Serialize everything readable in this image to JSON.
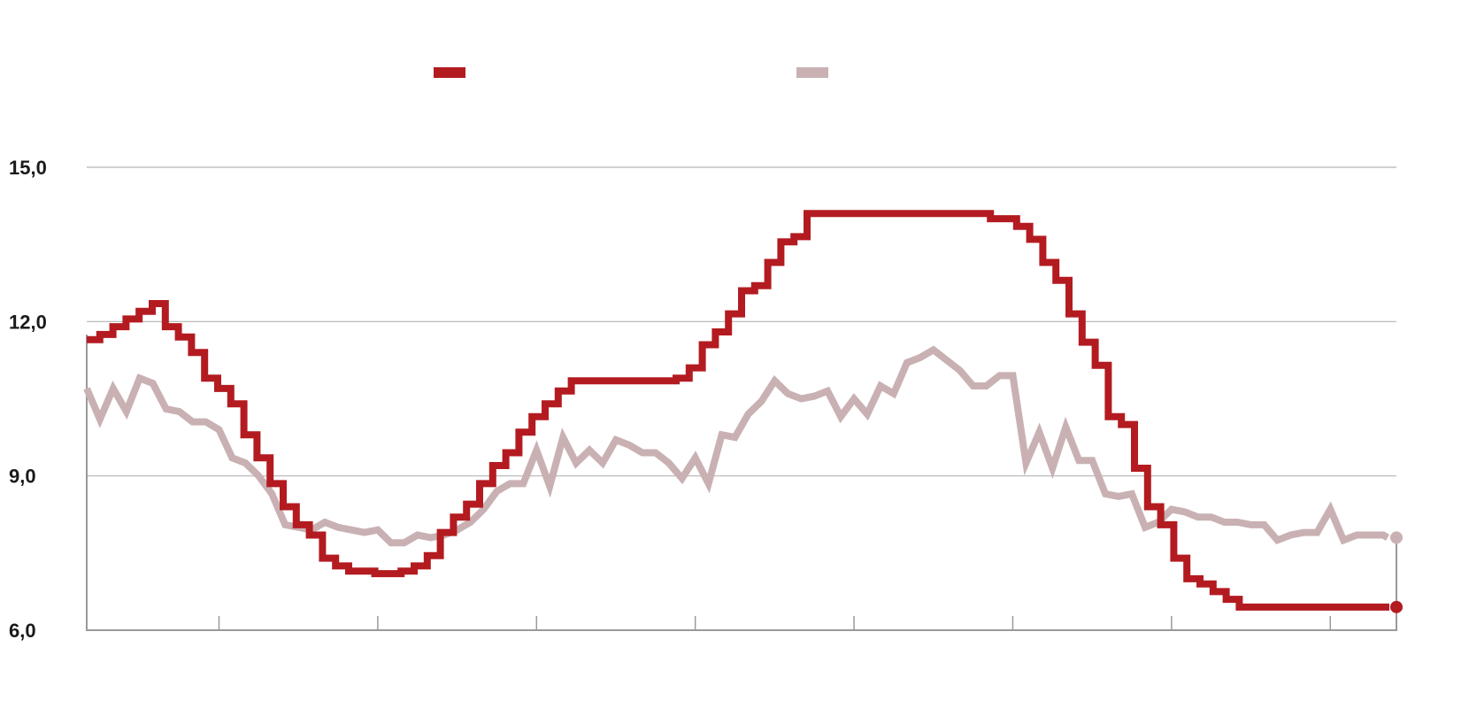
{
  "chart_data": {
    "type": "line",
    "title": "",
    "xlabel": "",
    "ylabel": "",
    "ylim": [
      6.0,
      15.0
    ],
    "y_ticks": [
      {
        "value": 6.0,
        "label": "6,0"
      },
      {
        "value": 9.0,
        "label": "9,0"
      },
      {
        "value": 12.0,
        "label": "12,0"
      },
      {
        "value": 15.0,
        "label": "15,0"
      }
    ],
    "xlim": [
      0,
      99
    ],
    "x_ticks": [
      10,
      22,
      34,
      46,
      58,
      70,
      82,
      94
    ],
    "grid": "horizontal",
    "legend": "top-center",
    "series": [
      {
        "color": "#b31b20",
        "style": "step",
        "values": [
          11.65,
          11.75,
          11.9,
          12.05,
          12.2,
          12.35,
          11.9,
          11.7,
          11.4,
          10.9,
          10.7,
          10.4,
          9.8,
          9.35,
          8.85,
          8.4,
          8.05,
          7.85,
          7.4,
          7.25,
          7.15,
          7.15,
          7.1,
          7.1,
          7.15,
          7.25,
          7.45,
          7.9,
          8.2,
          8.45,
          8.85,
          9.2,
          9.45,
          9.85,
          10.15,
          10.4,
          10.65,
          10.85,
          10.85,
          10.85,
          10.85,
          10.85,
          10.85,
          10.85,
          10.85,
          10.9,
          11.1,
          11.55,
          11.8,
          12.15,
          12.6,
          12.7,
          13.15,
          13.55,
          13.65,
          14.1,
          14.1,
          14.1,
          14.1,
          14.1,
          14.1,
          14.1,
          14.1,
          14.1,
          14.1,
          14.1,
          14.1,
          14.1,
          14.1,
          14.0,
          14.0,
          13.85,
          13.6,
          13.15,
          12.8,
          12.15,
          11.6,
          11.15,
          10.15,
          10.0,
          9.15,
          8.4,
          8.05,
          7.4,
          7.0,
          6.9,
          6.75,
          6.6,
          6.45,
          6.45,
          6.45,
          6.45,
          6.45,
          6.45,
          6.45,
          6.45,
          6.45,
          6.45,
          6.45,
          6.45
        ]
      },
      {
        "color": "#c9b1b3",
        "style": "line",
        "values": [
          10.7,
          10.1,
          10.7,
          10.25,
          10.9,
          10.8,
          10.3,
          10.25,
          10.05,
          10.05,
          9.9,
          9.35,
          9.25,
          9.0,
          8.65,
          8.05,
          8.0,
          7.95,
          8.1,
          8.0,
          7.95,
          7.9,
          7.95,
          7.7,
          7.7,
          7.85,
          7.8,
          7.85,
          7.95,
          8.1,
          8.35,
          8.7,
          8.85,
          8.85,
          9.5,
          8.8,
          9.75,
          9.25,
          9.5,
          9.25,
          9.7,
          9.6,
          9.45,
          9.45,
          9.25,
          8.95,
          9.35,
          8.85,
          9.8,
          9.75,
          10.2,
          10.45,
          10.85,
          10.6,
          10.5,
          10.55,
          10.65,
          10.15,
          10.5,
          10.2,
          10.75,
          10.6,
          11.2,
          11.3,
          11.45,
          11.25,
          11.05,
          10.75,
          10.75,
          10.95,
          10.95,
          9.25,
          9.85,
          9.15,
          9.95,
          9.3,
          9.3,
          8.65,
          8.6,
          8.65,
          8.0,
          8.1,
          8.35,
          8.3,
          8.2,
          8.2,
          8.1,
          8.1,
          8.05,
          8.05,
          7.75,
          7.85,
          7.9,
          7.9,
          8.35,
          7.75,
          7.85,
          7.85,
          7.85,
          7.8
        ]
      }
    ]
  }
}
